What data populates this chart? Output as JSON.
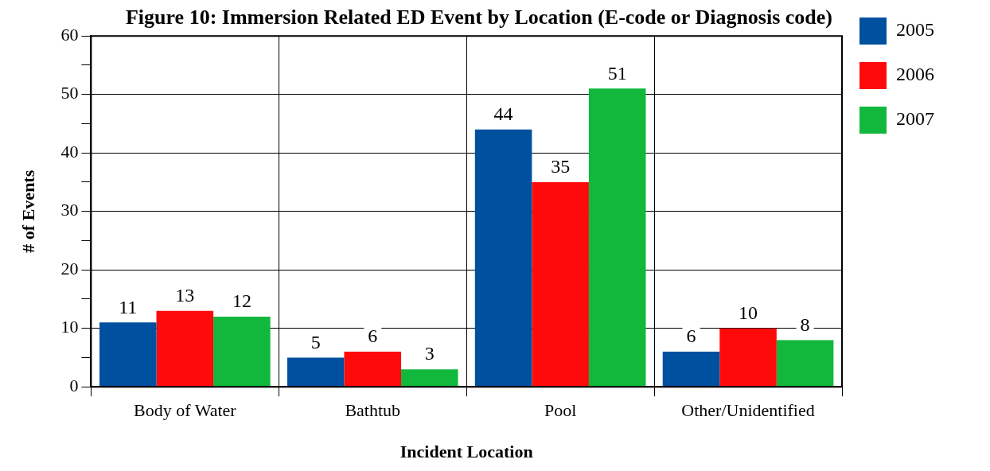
{
  "chart_data": {
    "type": "bar",
    "title": "Figure 10: Immersion Related ED Event by Location (E-code or Diagnosis code)",
    "xlabel": "Incident Location",
    "ylabel": "# of Events",
    "categories": [
      "Body of Water",
      "Bathtub",
      "Pool",
      "Other/Unidentified"
    ],
    "series": [
      {
        "name": "2005",
        "color": "#0050a0",
        "values": [
          11,
          5,
          44,
          6
        ]
      },
      {
        "name": "2006",
        "color": "#ff0a0a",
        "values": [
          13,
          6,
          35,
          10
        ]
      },
      {
        "name": "2007",
        "color": "#12b83c",
        "values": [
          12,
          3,
          51,
          8
        ]
      }
    ],
    "ylim": [
      0,
      60
    ],
    "yticks": [
      0,
      {
        "value": 5,
        "label": null
      },
      10,
      {
        "value": 15,
        "label": null
      },
      20,
      {
        "value": 25,
        "label": null
      },
      30,
      {
        "value": 35,
        "label": null
      },
      40,
      {
        "value": 45,
        "label": null
      },
      50,
      {
        "value": 55,
        "label": null
      },
      60
    ],
    "grid": true,
    "legend": "top right",
    "data_labels": true
  }
}
